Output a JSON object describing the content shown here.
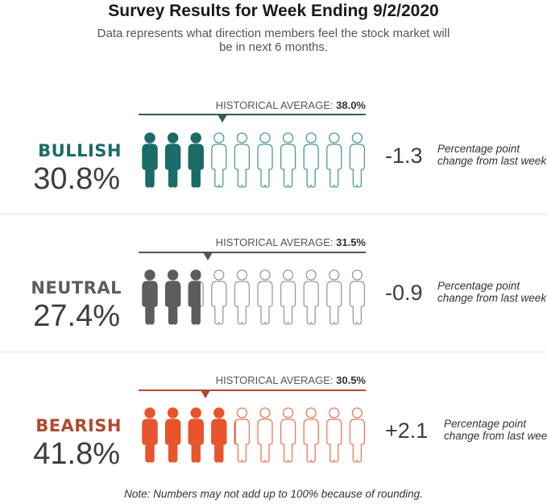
{
  "title": "Survey Results for Week Ending 9/2/2020",
  "subtitle": "Data represents what direction members feel the stock market will be in next 6 months.",
  "hist_label": "HISTORICAL AVERAGE:",
  "change_note": "Percentage point change from last week",
  "note": "Note: Numbers may not add up to 100% because of rounding.",
  "chart_data": {
    "type": "pictograph",
    "title": "Survey Results for Week Ending 9/2/2020",
    "icons_per_row": 10,
    "categories": [
      {
        "name": "BULLISH",
        "value_label": "30.8%",
        "value": 30.8,
        "hist_avg_label": "38.0%",
        "hist_avg": 38.0,
        "change_label": "-1.3",
        "change": -1.3,
        "color": "#1b6b67"
      },
      {
        "name": "NEUTRAL",
        "value_label": "27.4%",
        "value": 27.4,
        "hist_avg_label": "31.5%",
        "hist_avg": 31.5,
        "change_label": "-0.9",
        "change": -0.9,
        "color": "#5b5d5f"
      },
      {
        "name": "BEARISH",
        "value_label": "41.8%",
        "value": 41.8,
        "hist_avg_label": "30.5%",
        "hist_avg": 30.5,
        "change_label": "+2.1",
        "change": 2.1,
        "color": "#e8542b"
      }
    ]
  },
  "colors": {
    "bullish": "#1b6b67",
    "bullish_outline": "#4e9a96",
    "neutral": "#5b5d5f",
    "neutral_outline": "#9a9a9a",
    "bearish": "#e8542b",
    "bearish_outline": "#ea7a5a",
    "hist_bullish": "#2f5e5b",
    "hist_neutral": "#555555",
    "hist_bearish": "#b2492f"
  }
}
